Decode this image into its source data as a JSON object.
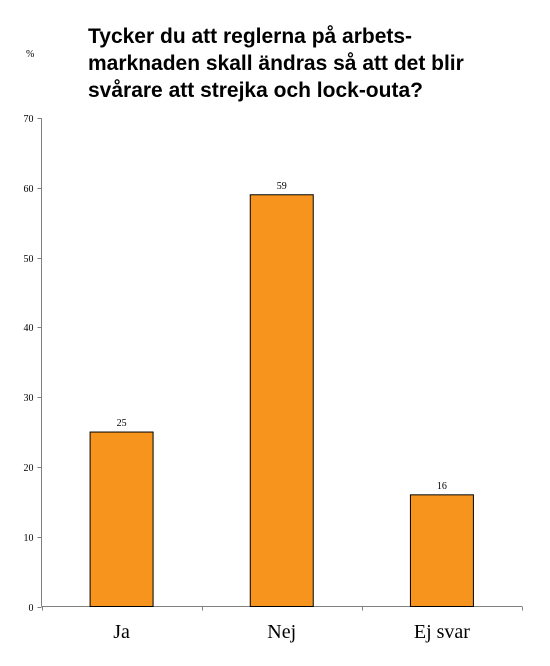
{
  "chart_data": {
    "type": "bar",
    "title_lines": [
      "Tycker du att reglerna på arbets-",
      "marknaden skall ändras så att det blir",
      "svårare att strejka och lock-outa?"
    ],
    "ylabel": "%",
    "xlabel": "",
    "categories": [
      "Ja",
      "Nej",
      "Ej svar"
    ],
    "values": [
      25,
      59,
      16
    ],
    "data_labels": [
      "25",
      "59",
      "16"
    ],
    "ylim": [
      0,
      70
    ],
    "yticks": [
      0,
      10,
      20,
      30,
      40,
      50,
      60,
      70
    ],
    "grid": false,
    "legend": "none",
    "colors": {
      "bar_fill": "#f7941d",
      "bar_stroke": "#000000",
      "axis": "#808080",
      "text": "#000000"
    }
  }
}
